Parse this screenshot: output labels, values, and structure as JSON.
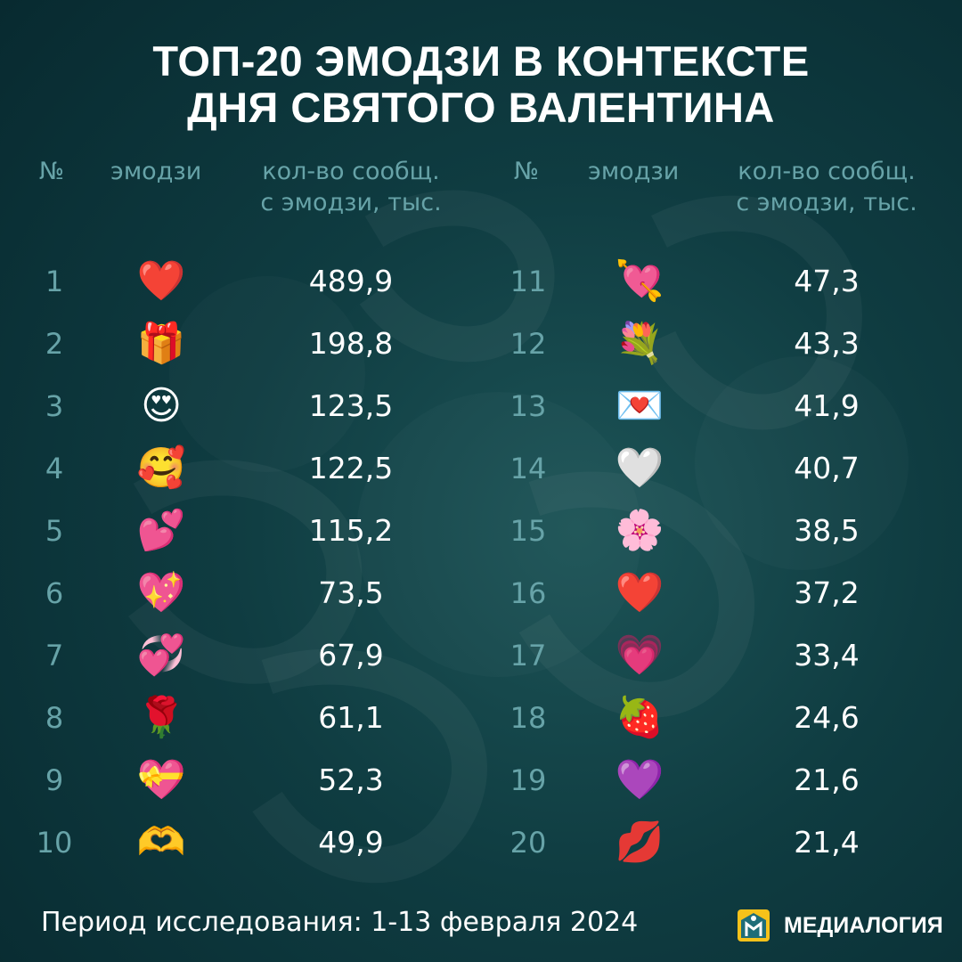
{
  "title": {
    "line1": "ТОП-20 ЭМОДЗИ В КОНТЕКСТЕ",
    "line2": "ДНЯ СВЯТОГО ВАЛЕНТИНА"
  },
  "headers": {
    "rank": "№",
    "emoji": "эмодзи",
    "count_line1": "кол-во сообщ.",
    "count_line2": "с эмодзи, тыс."
  },
  "chart_data": {
    "type": "table",
    "title": "ТОП-20 ЭМОДЗИ В КОНТЕКСТЕ ДНЯ СВЯТОГО ВАЛЕНТИНА",
    "columns": [
      "№",
      "эмодзи",
      "кол-во сообщ. с эмодзи, тыс."
    ],
    "rows": [
      {
        "rank": "1",
        "emoji": "❤️",
        "value": "489,9"
      },
      {
        "rank": "2",
        "emoji": "🎁",
        "value": "198,8"
      },
      {
        "rank": "3",
        "emoji": "😍",
        "value": "123,5"
      },
      {
        "rank": "4",
        "emoji": "🥰",
        "value": "122,5"
      },
      {
        "rank": "5",
        "emoji": "💕",
        "value": "115,2"
      },
      {
        "rank": "6",
        "emoji": "💖",
        "value": "73,5"
      },
      {
        "rank": "7",
        "emoji": "💞",
        "value": "67,9"
      },
      {
        "rank": "8",
        "emoji": "🌹",
        "value": "61,1"
      },
      {
        "rank": "9",
        "emoji": "💝",
        "value": "52,3"
      },
      {
        "rank": "10",
        "emoji": "🫶",
        "value": "49,9"
      },
      {
        "rank": "11",
        "emoji": "💘",
        "value": "47,3"
      },
      {
        "rank": "12",
        "emoji": "💐",
        "value": "43,3"
      },
      {
        "rank": "13",
        "emoji": "💌",
        "value": "41,9"
      },
      {
        "rank": "14",
        "emoji": "🤍",
        "value": "40,7"
      },
      {
        "rank": "15",
        "emoji": "🌸",
        "value": "38,5"
      },
      {
        "rank": "16",
        "emoji": "❤️",
        "value": "37,2"
      },
      {
        "rank": "17",
        "emoji": "💗",
        "value": "33,4"
      },
      {
        "rank": "18",
        "emoji": "🍓",
        "value": "24,6"
      },
      {
        "rank": "19",
        "emoji": "💜",
        "value": "21,6"
      },
      {
        "rank": "20",
        "emoji": "💋",
        "value": "21,4"
      }
    ]
  },
  "footer": {
    "period": "Период исследования: 1-13 февраля 2024",
    "brand": "МЕДИАЛОГИЯ",
    "logo_icon": "medialogia-logo-icon"
  },
  "colors": {
    "background": "#0f3c41",
    "header_text": "#67a3a8",
    "rank_text": "#67a3a8",
    "value_text": "#ffffff",
    "logo_yellow": "#f6c21a",
    "logo_teal": "#1f6d78"
  }
}
